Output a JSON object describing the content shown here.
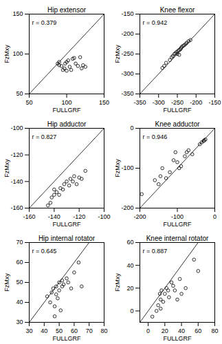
{
  "chart_data": [
    {
      "type": "scatter",
      "title": "Hip extensor",
      "x_label": "FULLGRF",
      "y_label": "FzMxy",
      "annotation": "r = 0.379",
      "color": "#000000",
      "marker": "open_circle",
      "x": [
        88,
        90,
        93,
        95,
        97,
        98,
        100,
        102,
        104,
        106,
        108,
        110,
        112,
        115,
        118,
        120,
        122,
        125,
        90,
        100
      ],
      "y": [
        88,
        86,
        85,
        80,
        82,
        88,
        90,
        92,
        84,
        80,
        94,
        95,
        88,
        85,
        96,
        82,
        86,
        84,
        90,
        79
      ],
      "xlim": [
        50,
        150
      ],
      "ylim": [
        50,
        150
      ],
      "xticks": [
        50,
        100,
        150
      ],
      "yticks": [
        50,
        100,
        150
      ]
    },
    {
      "type": "scatter",
      "title": "Knee flexor",
      "x_label": "FULLGRF",
      "y_label": "FzMxy",
      "annotation": "r = 0.942",
      "color": "#000000",
      "marker": "open_circle",
      "x": [
        -290,
        -285,
        -280,
        -270,
        -265,
        -262,
        -258,
        -255,
        -252,
        -250,
        -248,
        -245,
        -242,
        -240,
        -238,
        -235,
        -232,
        -228,
        -225,
        -220,
        -215,
        -245
      ],
      "y": [
        -285,
        -280,
        -272,
        -265,
        -258,
        -255,
        -250,
        -248,
        -245,
        -250,
        -242,
        -240,
        -238,
        -235,
        -232,
        -230,
        -228,
        -225,
        -222,
        -218,
        -215,
        -252
      ],
      "xlim": [
        -350,
        -150
      ],
      "ylim": [
        -350,
        -150
      ],
      "xticks": [
        -350,
        -300,
        -250,
        -200,
        -150
      ],
      "yticks": [
        -350,
        -300,
        -250,
        -200,
        -150
      ]
    },
    {
      "type": "scatter",
      "title": "Hip adductor",
      "x_label": "FULLGRF",
      "y_label": "FzMxy",
      "annotation": "r = 0.827",
      "color": "#000000",
      "marker": "open_circle",
      "x": [
        -145,
        -143,
        -142,
        -140,
        -138,
        -136,
        -135,
        -133,
        -132,
        -130,
        -128,
        -127,
        -125,
        -124,
        -122,
        -120,
        -118,
        -115,
        -140
      ],
      "y": [
        -158,
        -156,
        -152,
        -150,
        -148,
        -150,
        -145,
        -146,
        -142,
        -140,
        -143,
        -138,
        -140,
        -136,
        -142,
        -137,
        -138,
        -132,
        -146
      ],
      "xlim": [
        -160,
        -100
      ],
      "ylim": [
        -160,
        -100
      ],
      "xticks": [
        -160,
        -140,
        -120,
        -100
      ],
      "yticks": [
        -160,
        -140,
        -120,
        -100
      ]
    },
    {
      "type": "scatter",
      "title": "Knee adductor",
      "x_label": "FULLGRF",
      "y_label": "FzMxy",
      "annotation": "r = 0.946",
      "color": "#000000",
      "marker": "open_circle",
      "x": [
        -195,
        -160,
        -150,
        -145,
        -140,
        -130,
        -120,
        -110,
        -105,
        -100,
        -95,
        -90,
        -80,
        -75,
        -70,
        -40,
        -35,
        -30,
        -28,
        -25,
        -60
      ],
      "y": [
        -165,
        -130,
        -140,
        -120,
        -100,
        -125,
        -110,
        -80,
        -60,
        -85,
        -100,
        -95,
        -70,
        -60,
        -55,
        -40,
        -35,
        -32,
        -30,
        -28,
        -65
      ],
      "xlim": [
        -200,
        0
      ],
      "ylim": [
        -200,
        0
      ],
      "xticks": [
        -200,
        -100,
        0
      ],
      "yticks": [
        -200,
        -100,
        0
      ]
    },
    {
      "type": "scatter",
      "title": "Hip internal rotator",
      "x_label": "FULLGRF",
      "y_label": "FzMxy",
      "annotation": "r = 0.645",
      "color": "#000000",
      "marker": "open_circle",
      "x": [
        42,
        44,
        45,
        46,
        47,
        48,
        48,
        49,
        50,
        50,
        51,
        52,
        52,
        53,
        55,
        56,
        58,
        60,
        63,
        65,
        47
      ],
      "y": [
        43,
        40,
        45,
        47,
        38,
        44,
        48,
        42,
        46,
        50,
        36,
        48,
        51,
        49,
        52,
        50,
        47,
        55,
        60,
        48,
        33
      ],
      "xlim": [
        30,
        80
      ],
      "ylim": [
        30,
        70
      ],
      "xticks": [
        30,
        40,
        50,
        60,
        70,
        80
      ],
      "yticks": [
        30,
        40,
        50,
        60,
        70
      ]
    },
    {
      "type": "scatter",
      "title": "Knee internal rotator",
      "x_label": "FULLGRF",
      "y_label": "FzMxy",
      "annotation": "r = 0.887",
      "color": "#000000",
      "marker": "open_circle",
      "x": [
        5,
        10,
        12,
        14,
        15,
        16,
        18,
        20,
        22,
        24,
        25,
        28,
        30,
        32,
        35,
        38,
        40,
        45,
        55,
        60,
        15
      ],
      "y": [
        -5,
        0,
        5,
        15,
        10,
        18,
        8,
        15,
        20,
        18,
        12,
        25,
        22,
        18,
        10,
        28,
        15,
        20,
        45,
        35,
        2
      ],
      "xlim": [
        -10,
        80
      ],
      "ylim": [
        -10,
        60
      ],
      "xticks": [
        0,
        20,
        40,
        60,
        80
      ],
      "yticks": [
        0,
        20,
        40,
        60
      ]
    }
  ]
}
